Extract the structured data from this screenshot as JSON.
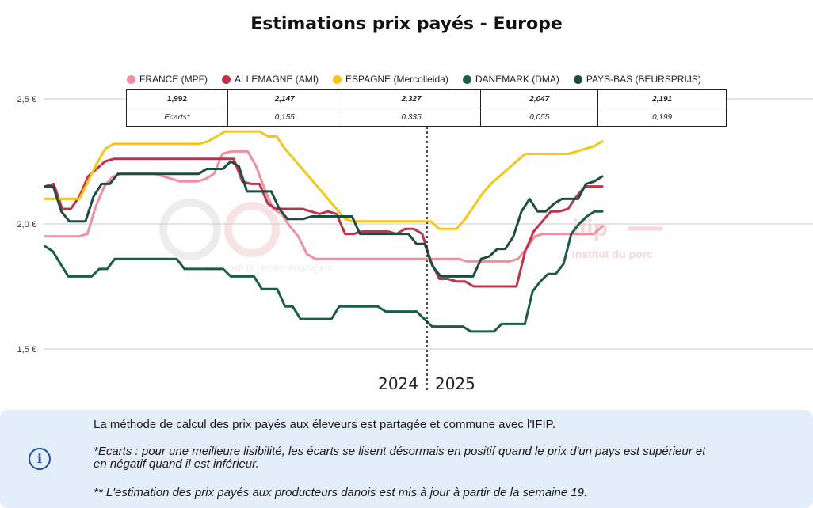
{
  "title": "Estimations prix payés - Europe",
  "chart_data": {
    "type": "line",
    "title": "Estimations prix payés - Europe",
    "ylim": [
      1.45,
      2.6
    ],
    "yticks": [
      1.5,
      2.0,
      2.5
    ],
    "ytick_labels": [
      "1,5 €",
      "2,0 €",
      "2,5 €"
    ],
    "weeks": 40,
    "year_split_after_index": 26,
    "year_labels": [
      "2024",
      "2025"
    ],
    "grid": true,
    "legend": "top",
    "series": [
      {
        "name": "FRANCE (MPF)",
        "color": "#f08fa0",
        "values": [
          1.95,
          1.95,
          1.95,
          1.95,
          1.95,
          1.96,
          2.07,
          2.15,
          2.19,
          2.2,
          2.2,
          2.2,
          2.2,
          2.2,
          2.19,
          2.18,
          2.17,
          2.17,
          2.17,
          2.18,
          2.2,
          2.28,
          2.29,
          2.29,
          2.29,
          2.23,
          2.14,
          2.06,
          2.04,
          1.99,
          1.95,
          1.88,
          1.86,
          1.86,
          1.86,
          1.86,
          1.86,
          1.86,
          1.86,
          1.86,
          1.86,
          1.86,
          1.86,
          1.86,
          1.86,
          1.86,
          1.86,
          1.86,
          1.86,
          1.86,
          1.85,
          1.85,
          1.85,
          1.85,
          1.85,
          1.85,
          1.86,
          1.9,
          1.95,
          1.96,
          1.96,
          1.96,
          1.96,
          1.96,
          1.96,
          1.96,
          1.99
        ]
      },
      {
        "name": "ALLEMAGNE (AMI)",
        "color": "#c1334b",
        "values": [
          2.15,
          2.16,
          2.06,
          2.06,
          2.11,
          2.19,
          2.22,
          2.25,
          2.26,
          2.26,
          2.26,
          2.26,
          2.26,
          2.26,
          2.26,
          2.26,
          2.26,
          2.26,
          2.26,
          2.26,
          2.26,
          2.26,
          2.26,
          2.17,
          2.16,
          2.16,
          2.08,
          2.06,
          2.06,
          2.06,
          2.06,
          2.05,
          2.04,
          2.05,
          2.04,
          1.96,
          1.96,
          1.97,
          1.97,
          1.97,
          1.97,
          1.96,
          1.98,
          1.98,
          1.96,
          1.85,
          1.78,
          1.78,
          1.77,
          1.77,
          1.75,
          1.75,
          1.75,
          1.75,
          1.75,
          1.75,
          1.89,
          1.97,
          2.01,
          2.05,
          2.05,
          2.06,
          2.11,
          2.15,
          2.15,
          2.15
        ]
      },
      {
        "name": "ESPAGNE (Mercolleida)",
        "color": "#f5c517",
        "values": [
          2.1,
          2.1,
          2.1,
          2.1,
          2.1,
          2.17,
          2.24,
          2.3,
          2.32,
          2.32,
          2.32,
          2.32,
          2.32,
          2.32,
          2.32,
          2.32,
          2.32,
          2.32,
          2.32,
          2.33,
          2.35,
          2.37,
          2.37,
          2.37,
          2.37,
          2.37,
          2.35,
          2.35,
          2.3,
          2.26,
          2.22,
          2.18,
          2.14,
          2.1,
          2.06,
          2.02,
          2.01,
          2.01,
          2.01,
          2.01,
          2.01,
          2.01,
          2.01,
          2.01,
          2.01,
          2.01,
          1.98,
          1.98,
          1.98,
          2.02,
          2.07,
          2.12,
          2.16,
          2.19,
          2.22,
          2.25,
          2.28,
          2.28,
          2.28,
          2.28,
          2.28,
          2.28,
          2.29,
          2.3,
          2.31,
          2.33
        ]
      },
      {
        "name": "DANEMARK (DMA)",
        "color": "#1a5e48",
        "values": [
          1.91,
          1.89,
          1.84,
          1.79,
          1.79,
          1.79,
          1.79,
          1.82,
          1.82,
          1.86,
          1.86,
          1.86,
          1.86,
          1.86,
          1.86,
          1.86,
          1.86,
          1.86,
          1.82,
          1.82,
          1.82,
          1.82,
          1.82,
          1.82,
          1.79,
          1.79,
          1.79,
          1.79,
          1.74,
          1.74,
          1.74,
          1.67,
          1.67,
          1.62,
          1.62,
          1.62,
          1.62,
          1.62,
          1.67,
          1.67,
          1.67,
          1.67,
          1.67,
          1.67,
          1.65,
          1.65,
          1.65,
          1.65,
          1.65,
          1.62,
          1.59,
          1.59,
          1.59,
          1.59,
          1.59,
          1.57,
          1.57,
          1.57,
          1.57,
          1.6,
          1.6,
          1.6,
          1.6,
          1.73,
          1.77,
          1.8,
          1.8,
          1.84,
          1.96,
          2.0,
          2.03,
          2.05,
          2.05
        ]
      },
      {
        "name": "PAYS-BAS (BEURSPRIJS)",
        "color": "#1d4d40",
        "values": [
          2.15,
          2.15,
          2.05,
          2.01,
          2.01,
          2.01,
          2.11,
          2.16,
          2.16,
          2.2,
          2.2,
          2.2,
          2.2,
          2.2,
          2.2,
          2.2,
          2.2,
          2.2,
          2.2,
          2.2,
          2.22,
          2.22,
          2.22,
          2.25,
          2.23,
          2.13,
          2.13,
          2.13,
          2.13,
          2.06,
          2.02,
          2.02,
          2.02,
          2.03,
          2.03,
          2.03,
          2.03,
          2.03,
          2.03,
          1.96,
          1.96,
          1.96,
          1.96,
          1.96,
          1.96,
          1.96,
          1.92,
          1.92,
          1.83,
          1.79,
          1.79,
          1.79,
          1.79,
          1.79,
          1.86,
          1.87,
          1.9,
          1.9,
          1.95,
          2.05,
          2.1,
          2.05,
          2.05,
          2.08,
          2.1,
          2.1,
          2.1,
          2.16,
          2.17,
          2.19
        ]
      }
    ],
    "table": {
      "values": [
        "1,992",
        "2,147",
        "2,327",
        "2,047",
        "2,191"
      ],
      "gap_label": "Ecarts*",
      "gaps": [
        "0,155",
        "0,335",
        "0,055",
        "0,199"
      ]
    }
  },
  "info": {
    "line1": "La méthode de calcul des prix payés aux éleveurs est partagée et commune avec l'IFIP.",
    "line2a": "*Ecarts : pour une meilleure lisibilité, les écarts se lisent désormais en positif quand le prix d'un pays est supérieur et",
    "line2b": "en négatif quand il est inférieur.",
    "line3": "** L'estimation des prix payés aux producteurs danois est mis à jour à partir de la semaine 19.",
    "icon": "info-icon"
  },
  "watermarks": {
    "left": "MARCHÉ DU PORC FRANÇAIS",
    "right_logo": "ifip",
    "right_text": "Institut du porc"
  }
}
